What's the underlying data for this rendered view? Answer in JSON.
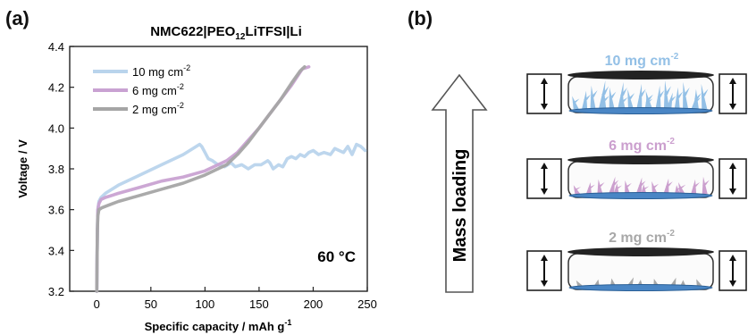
{
  "panel_a_label": "(a)",
  "panel_b_label": "(b)",
  "chart_data": {
    "type": "line",
    "title": "NMC622|PEO12LiTFSI|Li",
    "title_parts": {
      "pre": "NMC622|PEO",
      "sub": "12",
      "post": "LiTFSI|Li"
    },
    "xlabel": "Specific capacity / mAh g",
    "xlabel_sup": "-1",
    "ylabel": "Voltage / V",
    "xlim": [
      -25,
      250
    ],
    "ylim": [
      3.2,
      4.4
    ],
    "xticks": [
      0,
      50,
      100,
      150,
      200,
      250
    ],
    "yticks": [
      3.2,
      3.4,
      3.6,
      3.8,
      4.0,
      4.2,
      4.4
    ],
    "annotation": "60 °C",
    "legend_position": "top-left",
    "series": [
      {
        "name": "10 mg cm-2",
        "label": "10 mg cm",
        "sup": "-2",
        "color": "#b9d4ec",
        "points": [
          [
            0,
            3.2
          ],
          [
            0.3,
            3.35
          ],
          [
            0.6,
            3.5
          ],
          [
            1,
            3.6
          ],
          [
            2,
            3.64
          ],
          [
            4,
            3.66
          ],
          [
            8,
            3.68
          ],
          [
            20,
            3.72
          ],
          [
            40,
            3.77
          ],
          [
            60,
            3.82
          ],
          [
            80,
            3.87
          ],
          [
            95,
            3.92
          ],
          [
            97,
            3.91
          ],
          [
            100,
            3.88
          ],
          [
            103,
            3.85
          ],
          [
            107,
            3.84
          ],
          [
            112,
            3.82
          ],
          [
            118,
            3.81
          ],
          [
            124,
            3.83
          ],
          [
            128,
            3.81
          ],
          [
            134,
            3.82
          ],
          [
            140,
            3.8
          ],
          [
            146,
            3.82
          ],
          [
            152,
            3.82
          ],
          [
            158,
            3.84
          ],
          [
            160,
            3.83
          ],
          [
            163,
            3.8
          ],
          [
            168,
            3.82
          ],
          [
            172,
            3.81
          ],
          [
            176,
            3.85
          ],
          [
            180,
            3.86
          ],
          [
            184,
            3.85
          ],
          [
            188,
            3.87
          ],
          [
            192,
            3.86
          ],
          [
            196,
            3.88
          ],
          [
            200,
            3.89
          ],
          [
            205,
            3.87
          ],
          [
            210,
            3.88
          ],
          [
            216,
            3.87
          ],
          [
            220,
            3.9
          ],
          [
            224,
            3.89
          ],
          [
            228,
            3.88
          ],
          [
            232,
            3.91
          ],
          [
            236,
            3.87
          ],
          [
            240,
            3.92
          ],
          [
            244,
            3.91
          ],
          [
            248,
            3.89
          ]
        ]
      },
      {
        "name": "6 mg cm-2",
        "label": "6 mg cm",
        "sup": "-2",
        "color": "#c9a2d2",
        "points": [
          [
            0,
            3.2
          ],
          [
            0.3,
            3.35
          ],
          [
            0.6,
            3.5
          ],
          [
            1,
            3.6
          ],
          [
            2,
            3.63
          ],
          [
            4,
            3.65
          ],
          [
            8,
            3.66
          ],
          [
            20,
            3.68
          ],
          [
            40,
            3.71
          ],
          [
            60,
            3.74
          ],
          [
            80,
            3.76
          ],
          [
            100,
            3.79
          ],
          [
            120,
            3.84
          ],
          [
            130,
            3.88
          ],
          [
            140,
            3.94
          ],
          [
            150,
            4.0
          ],
          [
            160,
            4.07
          ],
          [
            170,
            4.14
          ],
          [
            180,
            4.21
          ],
          [
            190,
            4.29
          ],
          [
            196,
            4.3
          ]
        ]
      },
      {
        "name": "2 mg cm-2",
        "label": "2 mg cm",
        "sup": "-2",
        "color": "#a5a5a5",
        "points": [
          [
            0,
            3.2
          ],
          [
            0.3,
            3.35
          ],
          [
            0.6,
            3.5
          ],
          [
            1,
            3.57
          ],
          [
            2,
            3.6
          ],
          [
            5,
            3.61
          ],
          [
            10,
            3.62
          ],
          [
            20,
            3.64
          ],
          [
            40,
            3.67
          ],
          [
            60,
            3.7
          ],
          [
            80,
            3.73
          ],
          [
            100,
            3.77
          ],
          [
            120,
            3.82
          ],
          [
            130,
            3.87
          ],
          [
            140,
            3.93
          ],
          [
            150,
            4.0
          ],
          [
            160,
            4.07
          ],
          [
            170,
            4.14
          ],
          [
            180,
            4.22
          ],
          [
            188,
            4.28
          ],
          [
            192,
            4.3
          ]
        ]
      }
    ]
  },
  "diagram": {
    "arrow_label": "Mass loading",
    "cells": [
      {
        "label": "10 mg cm",
        "sup": "-2",
        "color": "#93c0e6",
        "dendrite_level": 1.0
      },
      {
        "label": "6 mg cm",
        "sup": "-2",
        "color": "#cb9fce",
        "dendrite_level": 0.55
      },
      {
        "label": "2 mg cm",
        "sup": "-2",
        "color": "#a8a8a8",
        "dendrite_level": 0.2
      }
    ]
  }
}
